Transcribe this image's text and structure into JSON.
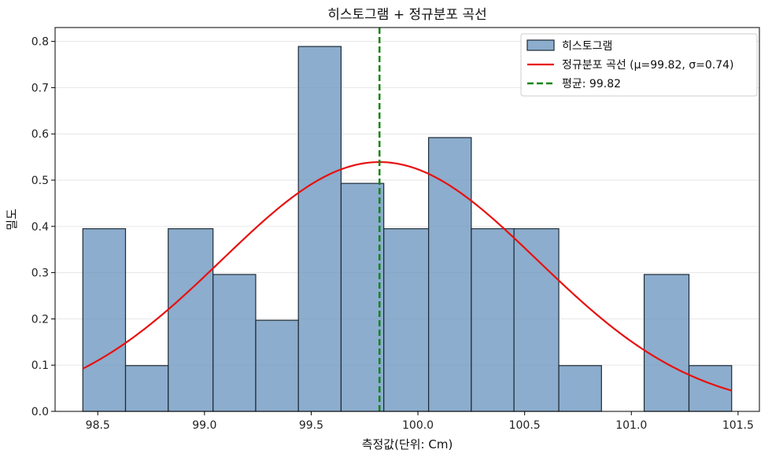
{
  "chart_data": {
    "type": "bar",
    "title": "히스토그램 + 정규분포 곡선",
    "xlabel": "측정값(단위: Cm)",
    "ylabel": "밀도",
    "xlim": [
      98.3,
      101.6
    ],
    "ylim": [
      0.0,
      0.83
    ],
    "grid": true,
    "legend_position": "top-right",
    "x_ticks": [
      98.5,
      99.0,
      99.5,
      100.0,
      100.5,
      101.0,
      101.5
    ],
    "x_tick_labels": [
      "98.5",
      "99.0",
      "99.5",
      "100.0",
      "100.5",
      "101.0",
      "101.5"
    ],
    "y_ticks": [
      0.0,
      0.1,
      0.2,
      0.3,
      0.4,
      0.5,
      0.6,
      0.7,
      0.8
    ],
    "y_tick_labels": [
      "0.0",
      "0.1",
      "0.2",
      "0.3",
      "0.4",
      "0.5",
      "0.6",
      "0.7",
      "0.8"
    ],
    "series": [
      {
        "name": "히스토그램",
        "type": "histogram",
        "color": "#6f98c0",
        "edge_color": "#1f2a35",
        "bin_edges": [
          98.43,
          98.63,
          98.83,
          99.04,
          99.24,
          99.44,
          99.64,
          99.84,
          100.05,
          100.25,
          100.45,
          100.66,
          100.86,
          101.06,
          101.27,
          101.47
        ],
        "values": [
          0.395,
          0.099,
          0.395,
          0.296,
          0.197,
          0.789,
          0.493,
          0.395,
          0.592,
          0.395,
          0.395,
          0.099,
          0.0,
          0.296,
          0.099
        ]
      },
      {
        "name": "정규분포 곡선 (μ=99.82, σ=0.74)",
        "type": "normal_curve",
        "color": "#e8100e",
        "mu": 99.82,
        "sigma": 0.74,
        "x_range": [
          98.43,
          101.47
        ]
      },
      {
        "name": "평균: 99.82",
        "type": "vline",
        "color": "#148414",
        "x": 99.82
      }
    ]
  }
}
